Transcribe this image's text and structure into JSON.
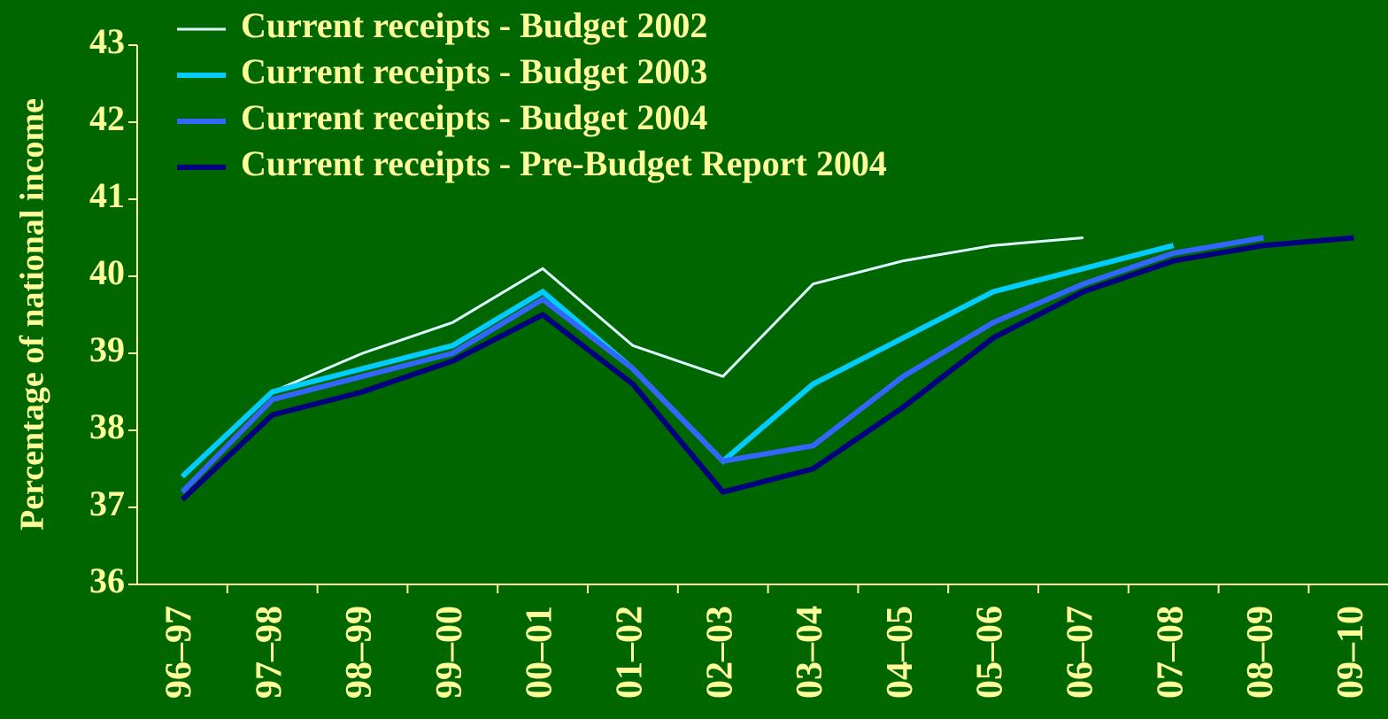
{
  "chart_data": {
    "type": "line",
    "ylabel": "Percentage of national income",
    "categories": [
      "96–97",
      "97–98",
      "98–99",
      "99–00",
      "00–01",
      "01–02",
      "02–03",
      "03–04",
      "04–05",
      "05–06",
      "06–07",
      "07–08",
      "08–09",
      "09–10"
    ],
    "series": [
      {
        "name": "Current receipts - Budget 2002",
        "color": "#e0ffff",
        "width": 3,
        "values": [
          null,
          38.5,
          39.0,
          39.4,
          40.1,
          39.1,
          38.7,
          39.9,
          40.2,
          40.4,
          40.5,
          null,
          null,
          null
        ]
      },
      {
        "name": "Current receipts - Budget 2003",
        "color": "#00ccff",
        "width": 6,
        "values": [
          37.4,
          38.5,
          38.8,
          39.1,
          39.8,
          38.8,
          37.6,
          38.6,
          39.2,
          39.8,
          40.1,
          40.4,
          null,
          null
        ]
      },
      {
        "name": "Current receipts - Budget 2004",
        "color": "#3366ff",
        "width": 6,
        "values": [
          37.2,
          38.4,
          38.7,
          39.0,
          39.7,
          38.8,
          37.6,
          37.8,
          38.7,
          39.4,
          39.9,
          40.3,
          40.5,
          null
        ]
      },
      {
        "name": "Current receipts - Pre-Budget Report 2004",
        "color": "#000080",
        "width": 6,
        "values": [
          37.1,
          38.2,
          38.5,
          38.9,
          39.5,
          38.6,
          37.2,
          37.5,
          38.3,
          39.2,
          39.8,
          40.2,
          40.4,
          40.5
        ]
      }
    ],
    "ylim": [
      36,
      43
    ],
    "yticks": [
      36,
      37,
      38,
      39,
      40,
      41,
      42,
      43
    ],
    "legend": "top-left"
  }
}
